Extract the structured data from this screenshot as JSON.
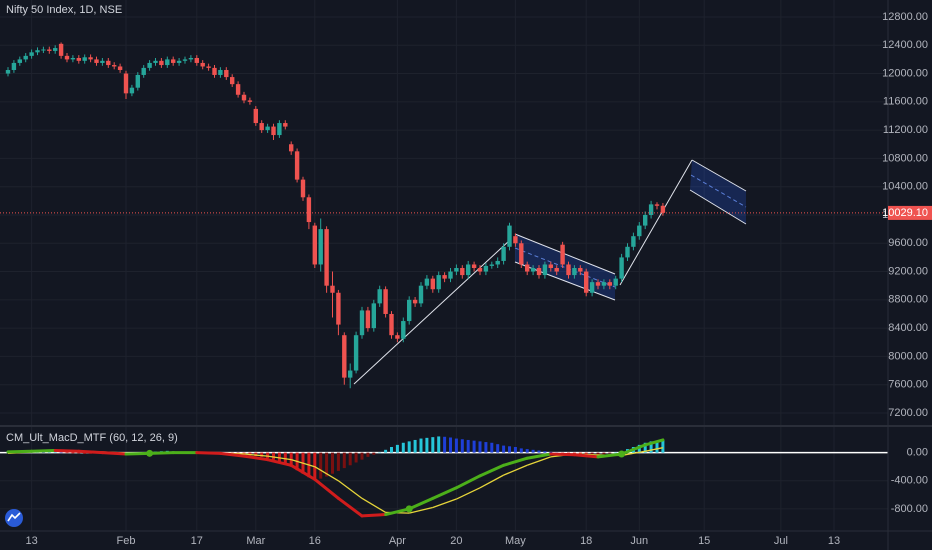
{
  "chart_data": [
    {
      "type": "candlestick",
      "title": "Nifty 50 Index, 1D, NSE",
      "up_color": "#26a69a",
      "down_color": "#ef5350",
      "grid": true,
      "ylim": [
        7030,
        13040
      ],
      "yticks": [
        {
          "value": 7200,
          "label": "7200.00"
        },
        {
          "value": 7600,
          "label": "7600.00"
        },
        {
          "value": 8000,
          "label": "8000.00"
        },
        {
          "value": 8400,
          "label": "8400.00"
        },
        {
          "value": 8800,
          "label": "8800.00"
        },
        {
          "value": 9200,
          "label": "9200.00"
        },
        {
          "value": 9600,
          "label": "9600.00"
        },
        {
          "value": 10000,
          "label": "10000.00"
        },
        {
          "value": 10400,
          "label": "10400.00"
        },
        {
          "value": 10800,
          "label": "10800.00"
        },
        {
          "value": 11200,
          "label": "11200.00"
        },
        {
          "value": 11600,
          "label": "11600.00"
        },
        {
          "value": 12000,
          "label": "12000.00"
        },
        {
          "value": 12400,
          "label": "12400.00"
        },
        {
          "value": 12800,
          "label": "12800.00"
        }
      ],
      "xticks": [
        {
          "value": 4,
          "label": "13"
        },
        {
          "value": 20,
          "label": "Feb"
        },
        {
          "value": 32,
          "label": "17"
        },
        {
          "value": 42,
          "label": "Mar"
        },
        {
          "value": 52,
          "label": "16"
        },
        {
          "value": 66,
          "label": "Apr"
        },
        {
          "value": 76,
          "label": "20"
        },
        {
          "value": 86,
          "label": "May"
        },
        {
          "value": 98,
          "label": "18"
        },
        {
          "value": 107,
          "label": "Jun"
        },
        {
          "value": 118,
          "label": "15"
        },
        {
          "value": 131,
          "label": "Jul"
        },
        {
          "value": 140,
          "label": "13"
        }
      ],
      "last_price": {
        "value": 10029.1,
        "label": "10029.10"
      },
      "open": [
        12000,
        12050,
        12150,
        12200,
        12250,
        12300,
        12330,
        12340,
        12320,
        12420,
        12250,
        12200,
        12220,
        12180,
        12230,
        12200,
        12150,
        12180,
        12120,
        12100,
        12000,
        11720,
        11800,
        11980,
        12080,
        12150,
        12180,
        12120,
        12200,
        12150,
        12180,
        12200,
        12220,
        12150,
        12100,
        12080,
        11980,
        12050,
        11950,
        11850,
        11700,
        11620,
        11500,
        11300,
        11200,
        11250,
        11130,
        11300,
        11000,
        10900,
        10500,
        10250,
        9850,
        9300,
        9800,
        9000,
        8900,
        8300,
        7700,
        7800,
        8300,
        8650,
        8400,
        8750,
        8950,
        8600,
        8300,
        8250,
        8500,
        8800,
        8750,
        9000,
        9100,
        8950,
        9150,
        9100,
        9200,
        9250,
        9150,
        9300,
        9250,
        9200,
        9280,
        9300,
        9350,
        9550,
        9700,
        9600,
        9300,
        9200,
        9250,
        9150,
        9300,
        9250,
        9580,
        9300,
        9150,
        9250,
        9200,
        8900,
        9050,
        9000,
        9050,
        9000,
        9100,
        9400,
        9550,
        9700,
        9850,
        10000,
        10150,
        10130
      ],
      "high": [
        12090,
        12190,
        12240,
        12290,
        12340,
        12370,
        12380,
        12380,
        12400,
        12440,
        12290,
        12260,
        12260,
        12270,
        12270,
        12240,
        12220,
        12220,
        12160,
        12140,
        12040,
        11840,
        12020,
        12120,
        12190,
        12220,
        12220,
        12240,
        12240,
        12220,
        12240,
        12260,
        12260,
        12190,
        12140,
        12120,
        12090,
        12090,
        11990,
        11890,
        11740,
        11660,
        11540,
        11340,
        11290,
        11290,
        11340,
        11340,
        11040,
        10940,
        10540,
        10290,
        9890,
        9950,
        9840,
        9200,
        8940,
        8340,
        7900,
        8350,
        8700,
        8700,
        8800,
        9000,
        8990,
        8640,
        8340,
        8550,
        8850,
        8840,
        9050,
        9150,
        9140,
        9200,
        9190,
        9250,
        9300,
        9290,
        9350,
        9340,
        9290,
        9320,
        9340,
        9400,
        9600,
        9890,
        9740,
        9640,
        9340,
        9290,
        9290,
        9340,
        9340,
        9290,
        9620,
        9340,
        9290,
        9290,
        9240,
        9090,
        9090,
        9090,
        9090,
        9140,
        9450,
        9600,
        9750,
        9900,
        10050,
        10200,
        10180,
        10170
      ],
      "low": [
        11960,
        12010,
        12110,
        12160,
        12210,
        12260,
        12290,
        12280,
        12280,
        12210,
        12160,
        12160,
        12140,
        12140,
        12160,
        12110,
        12110,
        12080,
        12060,
        12010,
        11640,
        11680,
        11760,
        11940,
        12040,
        12110,
        12080,
        12080,
        12110,
        12110,
        12140,
        12160,
        12110,
        12060,
        12040,
        11940,
        11940,
        11910,
        11810,
        11660,
        11580,
        11560,
        11260,
        11160,
        11160,
        11060,
        11090,
        11210,
        10850,
        10460,
        10200,
        9800,
        9250,
        9200,
        8900,
        8550,
        8300,
        7600,
        7550,
        7760,
        8250,
        8350,
        8350,
        8700,
        8550,
        8250,
        8200,
        8200,
        8450,
        8700,
        8700,
        8950,
        8900,
        8900,
        9050,
        9050,
        9150,
        9100,
        9100,
        9200,
        9150,
        9150,
        9240,
        9250,
        9300,
        9500,
        9550,
        9250,
        9150,
        9150,
        9100,
        9100,
        9200,
        9150,
        9250,
        9100,
        9100,
        9150,
        8850,
        8850,
        8950,
        8950,
        8950,
        8950,
        9050,
        9350,
        9500,
        9650,
        9800,
        9950,
        10080,
        9990
      ],
      "close": [
        12050,
        12150,
        12200,
        12250,
        12300,
        12330,
        12340,
        12320,
        12360,
        12250,
        12200,
        12220,
        12180,
        12230,
        12200,
        12150,
        12180,
        12120,
        12100,
        12050,
        11720,
        11800,
        11980,
        12080,
        12150,
        12180,
        12120,
        12200,
        12150,
        12180,
        12200,
        12220,
        12150,
        12100,
        12080,
        11980,
        12050,
        11950,
        11850,
        11700,
        11620,
        11600,
        11300,
        11200,
        11250,
        11130,
        11300,
        11250,
        10900,
        10500,
        10250,
        9900,
        9300,
        9800,
        9000,
        8900,
        8450,
        7700,
        7800,
        8300,
        8650,
        8400,
        8750,
        8950,
        8600,
        8300,
        8250,
        8500,
        8800,
        8750,
        9000,
        9100,
        8950,
        9150,
        9100,
        9200,
        9250,
        9150,
        9300,
        9250,
        9200,
        9280,
        9300,
        9350,
        9550,
        9850,
        9600,
        9300,
        9200,
        9250,
        9150,
        9300,
        9250,
        9200,
        9300,
        9150,
        9250,
        9200,
        8900,
        9050,
        9000,
        9050,
        9000,
        9100,
        9400,
        9550,
        9700,
        9850,
        10000,
        10150,
        10130,
        10030
      ]
    },
    {
      "type": "macd",
      "title": "CM_Ult_MacD_MTF (60, 12, 26, 9)",
      "ylim": [
        -1100,
        350
      ],
      "yticks": [
        {
          "value": 0,
          "label": "0.00"
        },
        {
          "value": -400,
          "label": "-400.00"
        },
        {
          "value": -800,
          "label": "-800.00"
        }
      ],
      "x": [
        0,
        4,
        8,
        12,
        16,
        20,
        24,
        28,
        32,
        36,
        40,
        44,
        48,
        52,
        56,
        60,
        64,
        68,
        72,
        76,
        80,
        84,
        88,
        92,
        96,
        100,
        104,
        108,
        111
      ],
      "macd": [
        10,
        20,
        30,
        20,
        0,
        -20,
        -10,
        0,
        0,
        -10,
        -50,
        -100,
        -180,
        -380,
        -650,
        -900,
        -880,
        -800,
        -650,
        -500,
        -330,
        -180,
        -80,
        -20,
        -30,
        -60,
        -20,
        110,
        180
      ],
      "signal": [
        -10,
        10,
        25,
        25,
        10,
        -5,
        -10,
        -5,
        0,
        -5,
        -20,
        -50,
        -100,
        -200,
        -400,
        -650,
        -850,
        -860,
        -780,
        -660,
        -500,
        -320,
        -180,
        -60,
        -20,
        -35,
        -40,
        20,
        70
      ],
      "macd_up_color": "#4caf1a",
      "macd_down_color": "#d01c1c",
      "signal_color": "#e6d53a",
      "cross_color": "#4caf1a",
      "histogram": [
        20,
        20,
        20,
        15,
        10,
        10,
        5,
        5,
        5,
        0,
        -5,
        -10,
        -10,
        -15,
        -15,
        -10,
        -10,
        -5,
        -10,
        -15,
        -20,
        -10,
        0,
        5,
        10,
        15,
        20,
        25,
        20,
        15,
        10,
        5,
        0,
        -5,
        -10,
        -10,
        -15,
        -20,
        -20,
        -25,
        -30,
        -40,
        -50,
        -60,
        -80,
        -100,
        -130,
        -160,
        -200,
        -250,
        -300,
        -350,
        -380,
        -370,
        -340,
        -300,
        -260,
        -220,
        -180,
        -140,
        -100,
        -60,
        -30,
        0,
        40,
        80,
        110,
        140,
        160,
        180,
        200,
        210,
        220,
        230,
        225,
        215,
        200,
        190,
        180,
        170,
        160,
        150,
        140,
        120,
        100,
        90,
        80,
        60,
        50,
        40,
        30,
        20,
        10,
        0,
        -10,
        -20,
        -30,
        -40,
        -45,
        -40,
        -30,
        -20,
        -10,
        0,
        20,
        50,
        80,
        110,
        140,
        160,
        170,
        180
      ],
      "hist_colors": {
        "pos_up": "#26c6da",
        "pos_down": "#1e3fd8",
        "neg_down": "#d01c1c",
        "neg_up": "#7a1010"
      }
    }
  ]
}
